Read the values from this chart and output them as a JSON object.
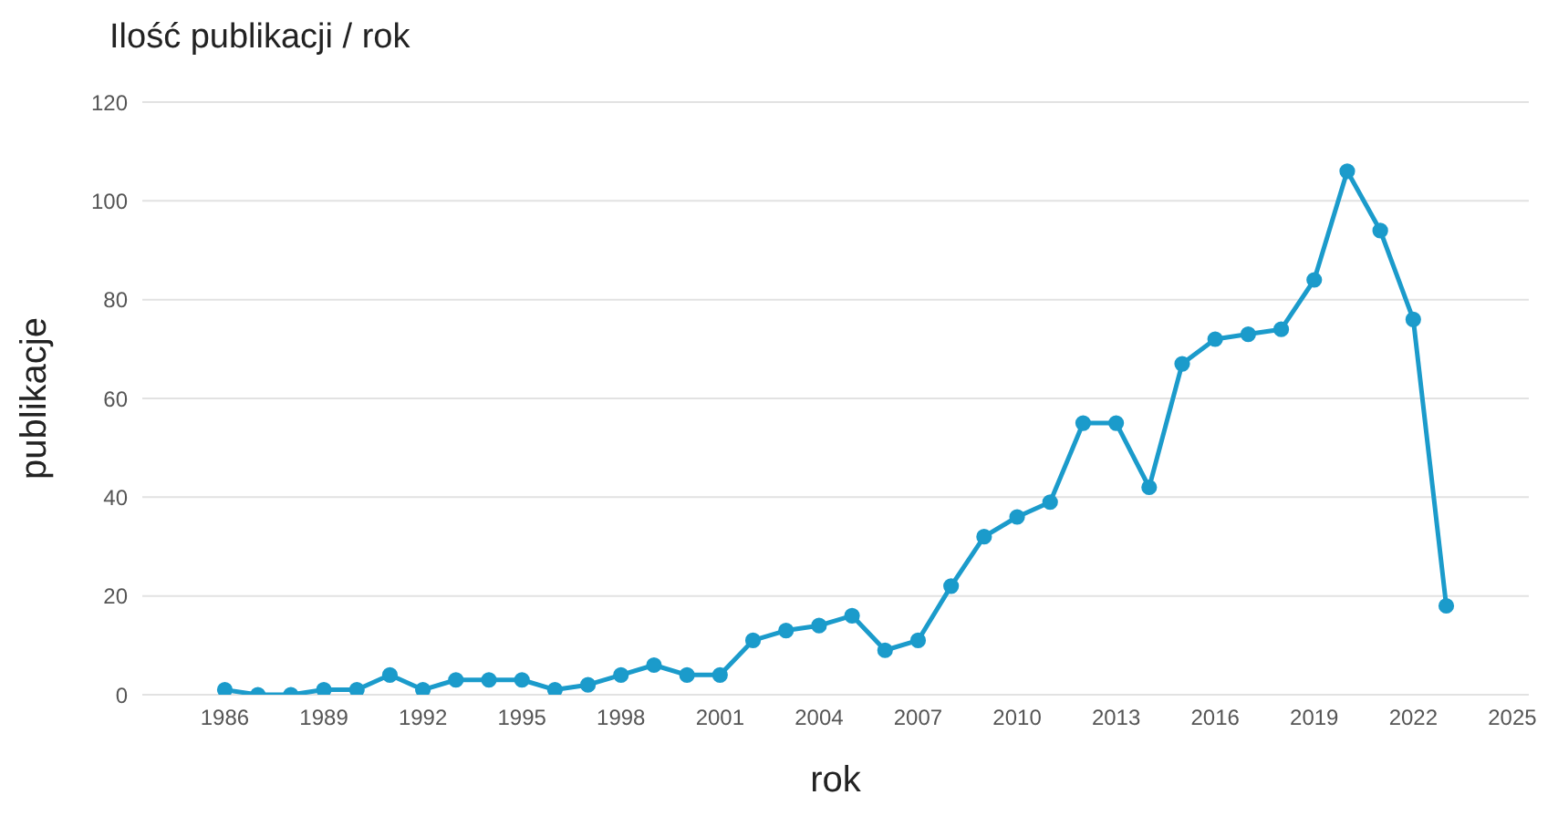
{
  "chart_data": {
    "type": "line",
    "title": "Ilość publikacji / rok",
    "xlabel": "rok",
    "ylabel": "publikacje",
    "x": [
      1986,
      1987,
      1988,
      1989,
      1990,
      1991,
      1992,
      1993,
      1994,
      1995,
      1996,
      1997,
      1998,
      1999,
      2000,
      2001,
      2002,
      2003,
      2004,
      2005,
      2006,
      2007,
      2008,
      2009,
      2010,
      2011,
      2012,
      2013,
      2014,
      2015,
      2016,
      2017,
      2018,
      2019,
      2020,
      2021,
      2022,
      2023
    ],
    "series": [
      {
        "color": "#1b9bcb",
        "values": [
          1,
          0,
          0,
          1,
          1,
          4,
          1,
          3,
          3,
          3,
          1,
          2,
          4,
          6,
          4,
          4,
          11,
          13,
          14,
          16,
          9,
          11,
          22,
          32,
          36,
          39,
          55,
          55,
          42,
          67,
          72,
          73,
          74,
          84,
          106,
          94,
          76,
          18
        ]
      }
    ],
    "xlim": [
      1983.5,
      2025.5
    ],
    "xticks": [
      1986,
      1989,
      1992,
      1995,
      1998,
      2001,
      2004,
      2007,
      2010,
      2013,
      2016,
      2019,
      2022,
      2025
    ],
    "ylim": [
      0,
      120
    ],
    "yticks": [
      0,
      20,
      40,
      60,
      80,
      100,
      120
    ],
    "grid": "y",
    "marker": "circle",
    "line_style": "solid",
    "legend": false
  }
}
